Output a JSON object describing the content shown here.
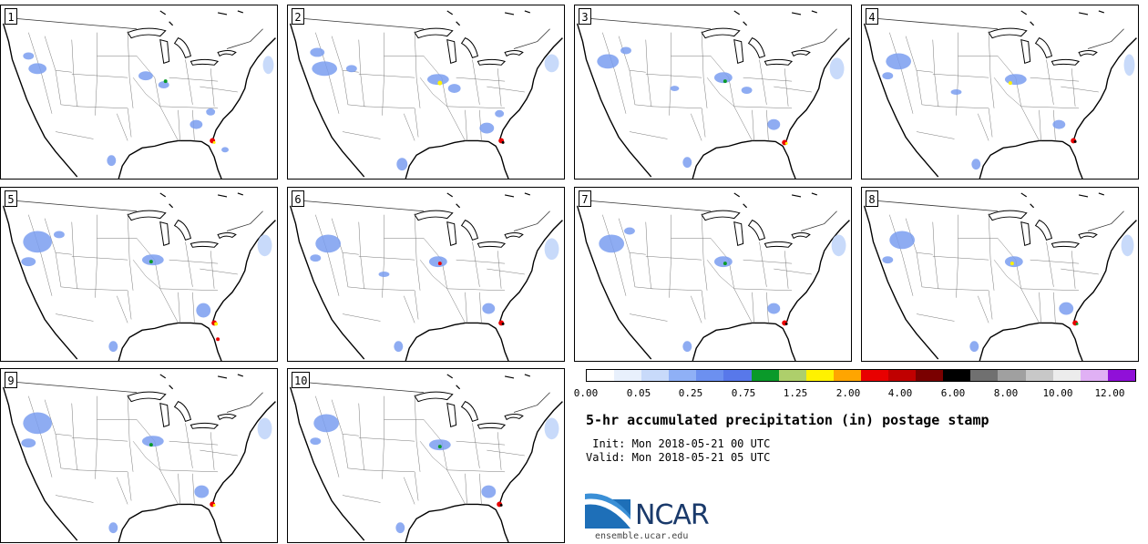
{
  "panels": [
    {
      "label": "1"
    },
    {
      "label": "2"
    },
    {
      "label": "3"
    },
    {
      "label": "4"
    },
    {
      "label": "5"
    },
    {
      "label": "6"
    },
    {
      "label": "7"
    },
    {
      "label": "8"
    },
    {
      "label": "9"
    },
    {
      "label": "10"
    }
  ],
  "colorbar": {
    "colors": [
      "#ffffff",
      "#e8f0fc",
      "#c8dafa",
      "#8fb0f6",
      "#6c90f0",
      "#5878ea",
      "#0a9a2a",
      "#aecf6b",
      "#fff200",
      "#ffa500",
      "#e80000",
      "#c00000",
      "#7a0000",
      "#000000",
      "#707070",
      "#a0a0a0",
      "#c8c8c8",
      "#ececec",
      "#e0b0f4",
      "#9010d8"
    ],
    "tick_labels": [
      "0.00",
      "0.05",
      "0.25",
      "0.75",
      "1.25",
      "2.00",
      "4.00",
      "6.00",
      "8.00",
      "10.00",
      "12.00"
    ]
  },
  "title": "5-hr accumulated precipitation (in) postage stamp",
  "init": " Init: Mon 2018-05-21 00 UTC",
  "valid": "Valid: Mon 2018-05-21 05 UTC",
  "logo": {
    "text": "NCAR",
    "site": "ensemble.ucar.edu"
  }
}
